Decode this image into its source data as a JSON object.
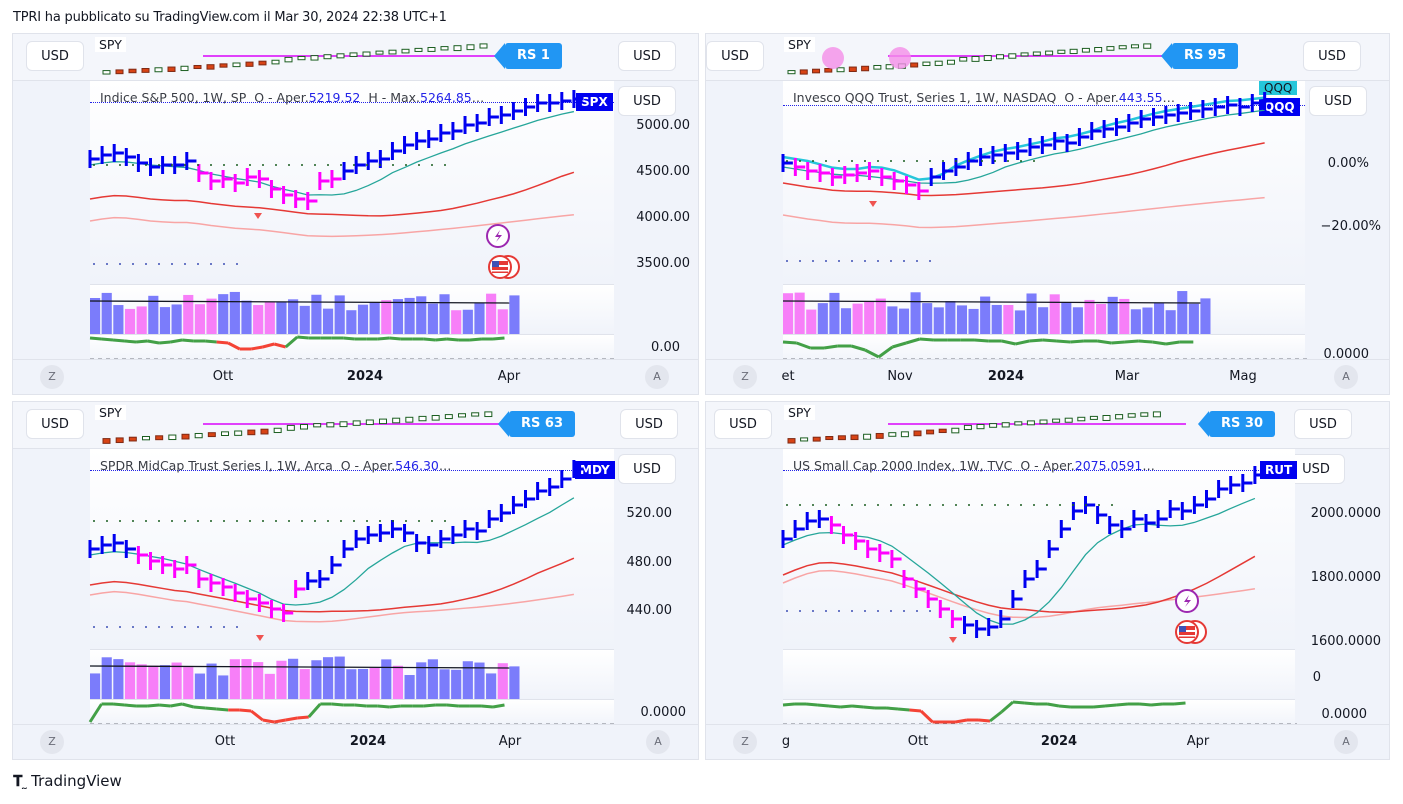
{
  "header": {
    "published": "TPRI ha pubblicato su TradingView.com il Mar 30, 2024 22:38 UTC+1"
  },
  "footer": {
    "brand": "TradingView",
    "logo_icon": "tradingview-logo-icon"
  },
  "panes": [
    {
      "id": "spx",
      "currency": "USD",
      "compare_symbol": "SPY",
      "rs_label": "RS 1",
      "legend": {
        "name": "Indice S&P 500, 1W, SP",
        "o_label": "O - Aper.",
        "open": "5219.52",
        "h_label": "H - Max.",
        "high": "5264.85",
        "ellipsis": "…"
      },
      "badges": [
        "SPX"
      ],
      "price_scale": [
        "5000.00",
        "4500.00",
        "4000.00",
        "3500.00"
      ],
      "osc_scale": "0.00",
      "time_axis": [
        {
          "label": "Ott",
          "bold": false
        },
        {
          "label": "2024",
          "bold": true
        },
        {
          "label": "Apr",
          "bold": false
        }
      ],
      "axis_left": "Z",
      "axis_right": "A",
      "has_event_icons": true,
      "colors": {
        "badge": "#0000f0"
      }
    },
    {
      "id": "qqq",
      "currency": "USD",
      "compare_symbol": "SPY",
      "rs_label": "RS 95",
      "legend": {
        "name": "Invesco QQQ Trust, Series 1, 1W, NASDAQ",
        "o_label": "O - Aper.",
        "open": "443.55",
        "ellipsis": "…"
      },
      "badges": [
        "QQQ",
        "QQQ"
      ],
      "price_scale": [
        "0.00%",
        "−20.00%"
      ],
      "osc_scale": "0.0000",
      "time_axis": [
        {
          "label": "et",
          "bold": false
        },
        {
          "label": "Nov",
          "bold": false
        },
        {
          "label": "2024",
          "bold": true
        },
        {
          "label": "Mar",
          "bold": false
        },
        {
          "label": "Mag",
          "bold": false
        }
      ],
      "axis_left": "Z",
      "axis_right": "A",
      "has_event_icons": false,
      "colors": {
        "badge": "#0000f0",
        "badge2": "#26c6da"
      }
    },
    {
      "id": "mdy",
      "currency": "USD",
      "compare_symbol": "SPY",
      "rs_label": "RS 63",
      "legend": {
        "name": "SPDR MidCap Trust Series I, 1W, Arca",
        "o_label": "O - Aper.",
        "open": "546.30",
        "ellipsis": "…"
      },
      "badges": [
        "MDY"
      ],
      "price_scale": [
        "520.00",
        "480.00",
        "440.00"
      ],
      "osc_scale": "0.0000",
      "time_axis": [
        {
          "label": "Ott",
          "bold": false
        },
        {
          "label": "2024",
          "bold": true
        },
        {
          "label": "Apr",
          "bold": false
        }
      ],
      "axis_left": "Z",
      "axis_right": "A",
      "has_event_icons": false,
      "colors": {
        "badge": "#0000f0"
      }
    },
    {
      "id": "rut",
      "currency": "USD",
      "compare_symbol": "SPY",
      "rs_label": "RS 30",
      "legend": {
        "name": "US Small Cap 2000 Index, 1W, TVC",
        "o_label": "O - Aper.",
        "open": "2075.0591",
        "ellipsis": "…"
      },
      "badges": [
        "RUT"
      ],
      "price_scale": [
        "2000.0000",
        "1800.0000",
        "1600.0000"
      ],
      "vol_scale": "0",
      "osc_scale": "0.0000",
      "time_axis": [
        {
          "label": "g",
          "bold": false
        },
        {
          "label": "Ott",
          "bold": false
        },
        {
          "label": "2024",
          "bold": true
        },
        {
          "label": "Apr",
          "bold": false
        }
      ],
      "axis_left": "Z",
      "axis_right": "A",
      "has_event_icons": true,
      "colors": {
        "badge": "#0000f0"
      }
    }
  ]
}
